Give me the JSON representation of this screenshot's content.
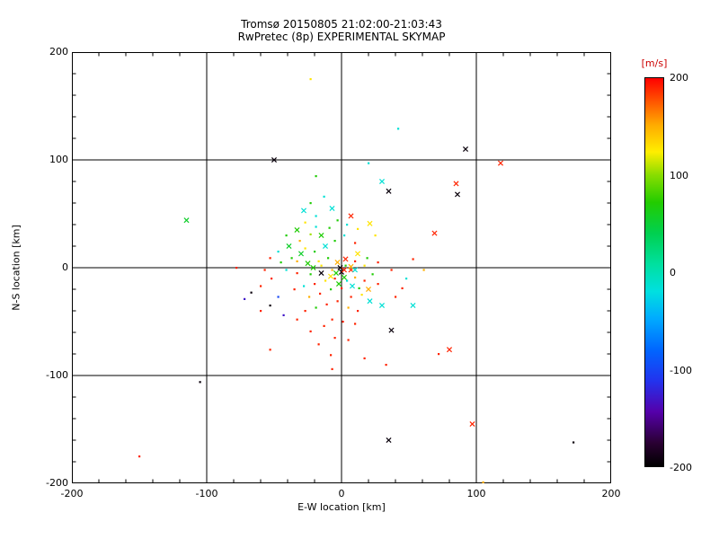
{
  "chart_data": {
    "type": "scatter",
    "title": "Tromsø 20150805 21:02:00-21:03:43",
    "subtitle": "RwPretec (8p) EXPERIMENTAL SKYMAP",
    "xlabel": "E-W location [km]",
    "ylabel": "N-S location [km]",
    "xlim": [
      -200,
      200
    ],
    "ylim": [
      -200,
      200
    ],
    "xticks": [
      -200,
      -100,
      0,
      100,
      200
    ],
    "yticks": [
      -200,
      -100,
      0,
      100,
      200
    ],
    "grid": true,
    "gridlines_x": [
      -100,
      0,
      100
    ],
    "gridlines_y": [
      -100,
      0,
      100
    ],
    "minor_tick_step": 20,
    "frame_color": "#000000",
    "colorbar": {
      "label": "[m/s]",
      "label_color": "#cc0000",
      "min": -200,
      "max": 200,
      "ticks": [
        200,
        100,
        0,
        -100,
        -200
      ],
      "stops": [
        [
          0.0,
          "#000000"
        ],
        [
          0.06,
          "#2a0033"
        ],
        [
          0.14,
          "#5500aa"
        ],
        [
          0.22,
          "#2233ee"
        ],
        [
          0.3,
          "#0066ff"
        ],
        [
          0.38,
          "#00aaff"
        ],
        [
          0.45,
          "#00e0e0"
        ],
        [
          0.52,
          "#00e0a0"
        ],
        [
          0.6,
          "#00d050"
        ],
        [
          0.68,
          "#22cc00"
        ],
        [
          0.75,
          "#88dd00"
        ],
        [
          0.81,
          "#ffee00"
        ],
        [
          0.88,
          "#ffaa00"
        ],
        [
          0.94,
          "#ff5500"
        ],
        [
          1.0,
          "#ff0000"
        ]
      ]
    },
    "point_format": [
      "x_km",
      "y_km",
      "velocity_ms",
      "marker"
    ],
    "points": [
      [
        -23,
        175,
        128,
        "."
      ],
      [
        92,
        110,
        -195,
        "x"
      ],
      [
        118,
        97,
        190,
        "x"
      ],
      [
        -50,
        100,
        -195,
        "x"
      ],
      [
        42,
        129,
        -15,
        "."
      ],
      [
        30,
        80,
        -15,
        "x"
      ],
      [
        35,
        71,
        -195,
        "x"
      ],
      [
        85,
        78,
        190,
        "x"
      ],
      [
        86,
        68,
        -195,
        "x"
      ],
      [
        20,
        97,
        -15,
        "."
      ],
      [
        -19,
        85,
        70,
        "."
      ],
      [
        -115,
        44,
        55,
        "x"
      ],
      [
        -7,
        55,
        -15,
        "x"
      ],
      [
        7,
        48,
        190,
        "x"
      ],
      [
        69,
        32,
        190,
        "x"
      ],
      [
        53,
        8,
        190,
        "."
      ],
      [
        -78,
        0,
        190,
        "."
      ],
      [
        -27,
        42,
        128,
        "."
      ],
      [
        -33,
        35,
        70,
        "x"
      ],
      [
        -23,
        31,
        105,
        "."
      ],
      [
        -41,
        30,
        70,
        "."
      ],
      [
        -31,
        25,
        150,
        "."
      ],
      [
        -19,
        38,
        -15,
        "."
      ],
      [
        -15,
        30,
        70,
        "x"
      ],
      [
        -39,
        20,
        55,
        "x"
      ],
      [
        -47,
        15,
        -15,
        "."
      ],
      [
        -53,
        9,
        190,
        "."
      ],
      [
        -57,
        -2,
        190,
        "."
      ],
      [
        -27,
        18,
        128,
        "."
      ],
      [
        -20,
        15,
        70,
        "."
      ],
      [
        -12,
        20,
        -15,
        "x"
      ],
      [
        -5,
        25,
        70,
        "."
      ],
      [
        2,
        30,
        -15,
        "."
      ],
      [
        10,
        23,
        190,
        "."
      ],
      [
        -33,
        6,
        150,
        "."
      ],
      [
        -25,
        4,
        70,
        "x"
      ],
      [
        -17,
        6,
        128,
        "."
      ],
      [
        -10,
        9,
        70,
        "."
      ],
      [
        -3,
        5,
        150,
        "x"
      ],
      [
        3,
        2,
        70,
        "."
      ],
      [
        10,
        6,
        190,
        "."
      ],
      [
        17,
        2,
        128,
        "."
      ],
      [
        -41,
        -2,
        -15,
        "."
      ],
      [
        -33,
        -5,
        190,
        "."
      ],
      [
        -23,
        -6,
        70,
        "."
      ],
      [
        -15,
        -5,
        -195,
        "x"
      ],
      [
        -7,
        -2,
        150,
        "."
      ],
      [
        0,
        -4,
        -195,
        "x"
      ],
      [
        7,
        -2,
        190,
        "x"
      ],
      [
        2,
        -9,
        70,
        "x"
      ],
      [
        -5,
        -10,
        190,
        "."
      ],
      [
        -12,
        -12,
        128,
        "."
      ],
      [
        -20,
        -15,
        190,
        "."
      ],
      [
        -28,
        -17,
        -15,
        "."
      ],
      [
        -35,
        -20,
        190,
        "."
      ],
      [
        10,
        -9,
        150,
        "."
      ],
      [
        17,
        -12,
        190,
        "."
      ],
      [
        23,
        -6,
        70,
        "."
      ],
      [
        8,
        -17,
        -15,
        "x"
      ],
      [
        0,
        -19,
        190,
        "."
      ],
      [
        -8,
        -20,
        70,
        "."
      ],
      [
        -16,
        -24,
        190,
        "."
      ],
      [
        -24,
        -27,
        150,
        "."
      ],
      [
        7,
        -27,
        190,
        "."
      ],
      [
        15,
        -25,
        128,
        "."
      ],
      [
        21,
        -31,
        -15,
        "x"
      ],
      [
        -3,
        -31,
        190,
        "."
      ],
      [
        -11,
        -34,
        190,
        "."
      ],
      [
        -19,
        -37,
        70,
        "."
      ],
      [
        -27,
        -40,
        190,
        "."
      ],
      [
        5,
        -37,
        150,
        "."
      ],
      [
        12,
        -40,
        190,
        "."
      ],
      [
        30,
        -35,
        -15,
        "x"
      ],
      [
        40,
        -27,
        190,
        "."
      ],
      [
        -47,
        -27,
        -100,
        "."
      ],
      [
        -53,
        -35,
        -195,
        "."
      ],
      [
        -60,
        -40,
        190,
        "."
      ],
      [
        -43,
        -44,
        -130,
        "."
      ],
      [
        -33,
        -48,
        190,
        "."
      ],
      [
        -7,
        -48,
        190,
        "."
      ],
      [
        1,
        -50,
        190,
        "."
      ],
      [
        10,
        -52,
        190,
        "."
      ],
      [
        -13,
        -54,
        190,
        "."
      ],
      [
        -23,
        -59,
        190,
        "."
      ],
      [
        37,
        -58,
        -195,
        "x"
      ],
      [
        -5,
        -65,
        190,
        "."
      ],
      [
        5,
        -67,
        190,
        "."
      ],
      [
        -17,
        -71,
        190,
        "."
      ],
      [
        -53,
        -76,
        190,
        "."
      ],
      [
        80,
        -76,
        190,
        "x"
      ],
      [
        -8,
        -81,
        190,
        "."
      ],
      [
        17,
        -84,
        190,
        "."
      ],
      [
        33,
        -90,
        190,
        "."
      ],
      [
        -7,
        -94,
        190,
        "."
      ],
      [
        72,
        -80,
        190,
        "."
      ],
      [
        -105,
        -106,
        -195,
        "."
      ],
      [
        35,
        -160,
        -195,
        "x"
      ],
      [
        97,
        -145,
        190,
        "x"
      ],
      [
        172,
        -162,
        -195,
        "."
      ],
      [
        -150,
        -175,
        190,
        "."
      ],
      [
        105,
        -199,
        150,
        "."
      ],
      [
        25,
        30,
        128,
        "."
      ],
      [
        -19,
        48,
        -15,
        "."
      ],
      [
        -13,
        66,
        -15,
        "."
      ],
      [
        -23,
        60,
        70,
        "."
      ],
      [
        -28,
        53,
        -15,
        "x"
      ],
      [
        12,
        13,
        128,
        "x"
      ],
      [
        19,
        9,
        70,
        "."
      ],
      [
        27,
        5,
        190,
        "."
      ],
      [
        37,
        -2,
        190,
        "."
      ],
      [
        48,
        -10,
        -15,
        "."
      ],
      [
        12,
        36,
        128,
        "."
      ],
      [
        21,
        41,
        128,
        "x"
      ],
      [
        -3,
        44,
        70,
        "."
      ],
      [
        4,
        40,
        -15,
        "."
      ],
      [
        -9,
        37,
        70,
        "."
      ],
      [
        -30,
        13,
        55,
        "x"
      ],
      [
        -37,
        9,
        70,
        "."
      ],
      [
        -45,
        5,
        70,
        "."
      ],
      [
        -52,
        -10,
        190,
        "."
      ],
      [
        -60,
        -17,
        190,
        "."
      ],
      [
        -67,
        -23,
        -195,
        "."
      ],
      [
        -72,
        -29,
        -130,
        "."
      ],
      [
        -21,
        0,
        70,
        "x"
      ],
      [
        -8,
        -8,
        128,
        "x"
      ],
      [
        -2,
        -15,
        70,
        "x"
      ],
      [
        4,
        -12,
        -15,
        "."
      ],
      [
        13,
        -19,
        70,
        "."
      ],
      [
        20,
        -20,
        150,
        "x"
      ],
      [
        3,
        8,
        190,
        "x"
      ],
      [
        -1,
        0,
        -195,
        "x"
      ],
      [
        2,
        -2,
        190,
        "x"
      ],
      [
        7,
        1,
        150,
        "x"
      ],
      [
        -4,
        -5,
        70,
        "x"
      ],
      [
        10,
        -2,
        -15,
        "x"
      ],
      [
        27,
        -15,
        190,
        "."
      ],
      [
        45,
        -19,
        190,
        "."
      ],
      [
        53,
        -35,
        -15,
        "x"
      ],
      [
        61,
        -2,
        150,
        "."
      ],
      [
        -15,
        2,
        128,
        "."
      ]
    ]
  }
}
